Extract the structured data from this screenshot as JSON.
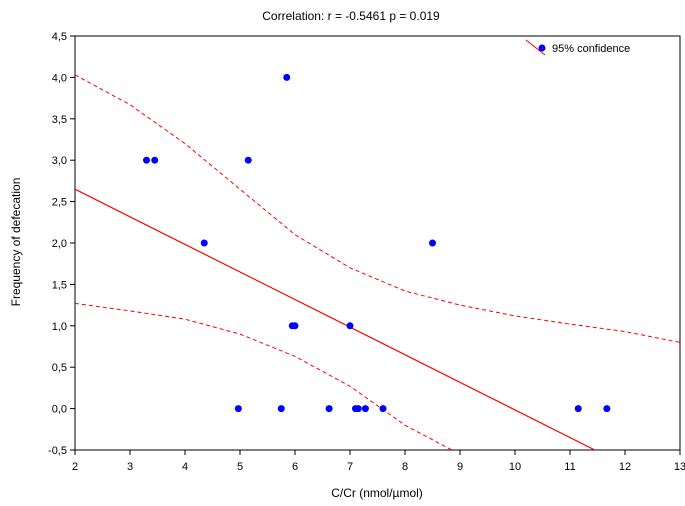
{
  "chart_data": {
    "type": "scatter",
    "title": "Correlation: r = -0.5461 p = 0.019",
    "xlabel": "C/Cr (nmol/µmol)",
    "ylabel": "Frequency of defecation",
    "xlim": [
      2,
      13
    ],
    "ylim": [
      -0.5,
      4.5
    ],
    "x_ticks": [
      2,
      3,
      4,
      5,
      6,
      7,
      8,
      9,
      10,
      11,
      12,
      13
    ],
    "x_tick_labels": [
      "2",
      "3",
      "4",
      "5",
      "6",
      "7",
      "8",
      "9",
      "10",
      "11",
      "12",
      "13"
    ],
    "y_ticks": [
      -0.5,
      0,
      0.5,
      1,
      1.5,
      2,
      2.5,
      3,
      3.5,
      4,
      4.5
    ],
    "y_tick_labels": [
      "-0,5",
      "0,0",
      "0,5",
      "1,0",
      "1,5",
      "2,0",
      "2,5",
      "3,0",
      "3,5",
      "4,0",
      "4,5"
    ],
    "grid": false,
    "legend_position": "top-right",
    "legend_label": "95% confidence",
    "point_color": "#0000ff",
    "line_color": "#ff0000",
    "points": [
      {
        "x": 3.3,
        "y": 3.0
      },
      {
        "x": 3.45,
        "y": 3.0
      },
      {
        "x": 4.35,
        "y": 2.0
      },
      {
        "x": 4.97,
        "y": 0.0
      },
      {
        "x": 5.15,
        "y": 3.0
      },
      {
        "x": 5.75,
        "y": 0.0
      },
      {
        "x": 5.85,
        "y": 4.0
      },
      {
        "x": 5.95,
        "y": 1.0
      },
      {
        "x": 6.0,
        "y": 1.0
      },
      {
        "x": 6.62,
        "y": 0.0
      },
      {
        "x": 7.0,
        "y": 1.0
      },
      {
        "x": 7.1,
        "y": 0.0
      },
      {
        "x": 7.15,
        "y": 0.0
      },
      {
        "x": 7.28,
        "y": 0.0
      },
      {
        "x": 7.6,
        "y": 0.0
      },
      {
        "x": 8.5,
        "y": 2.0
      },
      {
        "x": 11.15,
        "y": 0.0
      },
      {
        "x": 11.67,
        "y": 0.0
      }
    ],
    "regression_line": [
      {
        "x": 2.0,
        "y": 2.65
      },
      {
        "x": 11.45,
        "y": -0.5
      }
    ],
    "confidence_upper": [
      {
        "x": 2.0,
        "y": 4.03
      },
      {
        "x": 3.0,
        "y": 3.67
      },
      {
        "x": 4.0,
        "y": 3.2
      },
      {
        "x": 5.0,
        "y": 2.65
      },
      {
        "x": 6.0,
        "y": 2.1
      },
      {
        "x": 7.0,
        "y": 1.7
      },
      {
        "x": 8.0,
        "y": 1.42
      },
      {
        "x": 9.0,
        "y": 1.25
      },
      {
        "x": 10.0,
        "y": 1.12
      },
      {
        "x": 11.0,
        "y": 1.02
      },
      {
        "x": 12.0,
        "y": 0.93
      },
      {
        "x": 13.0,
        "y": 0.8
      }
    ],
    "confidence_lower": [
      {
        "x": 2.0,
        "y": 1.27
      },
      {
        "x": 3.0,
        "y": 1.18
      },
      {
        "x": 4.0,
        "y": 1.08
      },
      {
        "x": 5.0,
        "y": 0.9
      },
      {
        "x": 6.0,
        "y": 0.63
      },
      {
        "x": 7.0,
        "y": 0.27
      },
      {
        "x": 8.0,
        "y": -0.2
      },
      {
        "x": 8.85,
        "y": -0.5
      }
    ]
  }
}
